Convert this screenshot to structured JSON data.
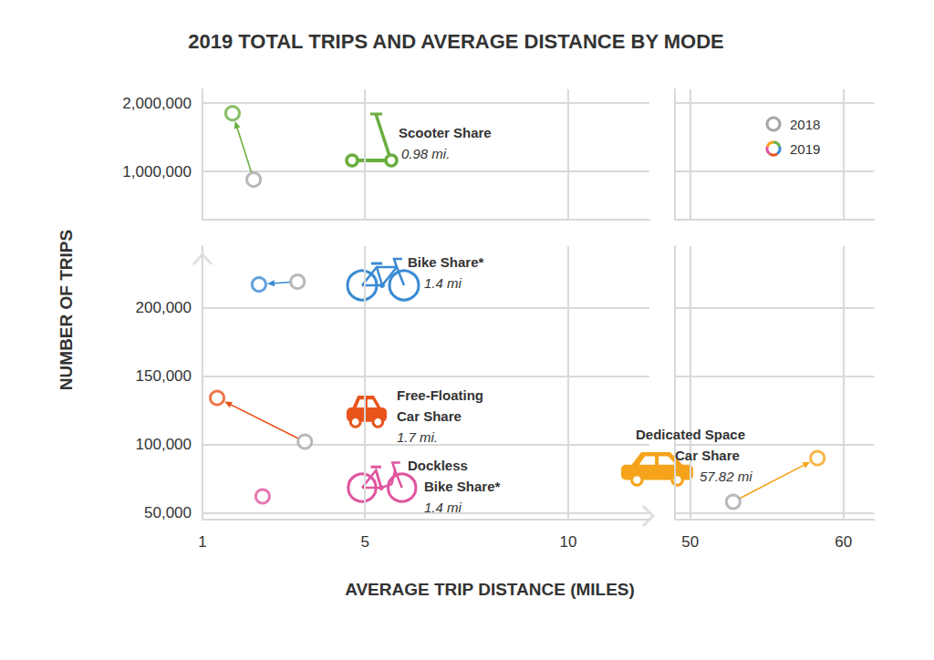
{
  "chart_data": {
    "type": "scatter",
    "title": "2019 TOTAL TRIPS AND AVERAGE DISTANCE BY MODE",
    "xlabel": "AVERAGE TRIP DISTANCE (MILES)",
    "ylabel": "NUMBER OF TRIPS",
    "grid": true,
    "marker": "ring",
    "legend": "upper right",
    "panels": [
      {
        "xlim": [
          1,
          12
        ],
        "xticks": [
          1,
          5,
          10
        ],
        "ylim": [
          300000,
          2200000
        ],
        "yticks": [
          {
            "value": 1000000,
            "label": "1,000,000"
          },
          {
            "value": 2000000,
            "label": "2,000,000"
          }
        ],
        "tick_labels": "y"
      },
      {
        "xlim": [
          49,
          62
        ],
        "xticks": [
          50,
          60
        ],
        "ylim": [
          300000,
          2200000
        ],
        "yticks": [
          {
            "value": 1000000,
            "label": "1,000,000"
          },
          {
            "value": 2000000,
            "label": "2,000,000"
          }
        ],
        "tick_labels": false
      },
      {
        "xlim": [
          1,
          12
        ],
        "xticks": [
          1,
          5,
          10
        ],
        "ylim": [
          45000,
          245000
        ],
        "yticks": [
          {
            "value": 50000,
            "label": "50,000"
          },
          {
            "value": 100000,
            "label": "100,000"
          },
          {
            "value": 150000,
            "label": "150,000"
          },
          {
            "value": 200000,
            "label": "200,000"
          }
        ]
      },
      {
        "xlim": [
          49,
          62
        ],
        "xticks": [
          50,
          60
        ],
        "ylim": [
          45000,
          245000
        ],
        "yticks": [
          {
            "value": 50000,
            "label": "50,000"
          },
          {
            "value": 100000,
            "label": "100,000"
          },
          {
            "value": 150000,
            "label": "150,000"
          },
          {
            "value": 200000,
            "label": "200,000"
          }
        ],
        "tick_labels": "x"
      }
    ],
    "labels": [
      "Scooter Share",
      "Bike Share*",
      "Free-Floating Car Share",
      "Dockless Bike Share*",
      "Dedicated Space Car Share"
    ],
    "annotations": [
      "0.98 mi.",
      "1.4 mi",
      "1.7 mi.",
      "1.4 mi",
      "57.82 mi"
    ],
    "series": [
      {
        "name": "2018",
        "color": "#a6a6a6",
        "x": [
          2.26,
          3.34,
          3.52,
          null,
          52.8
        ],
        "values": [
          880000,
          219000,
          102000,
          null,
          58000
        ]
      },
      {
        "name": "2019",
        "colors": [
          "#6aae3f",
          "#3a8ad3",
          "#e8541c",
          "#e0559f",
          "#f5a31a"
        ],
        "x": [
          1.74,
          2.39,
          1.36,
          2.48,
          58.3
        ],
        "values": [
          1850000,
          217000,
          134000,
          62000,
          90000
        ]
      }
    ]
  }
}
